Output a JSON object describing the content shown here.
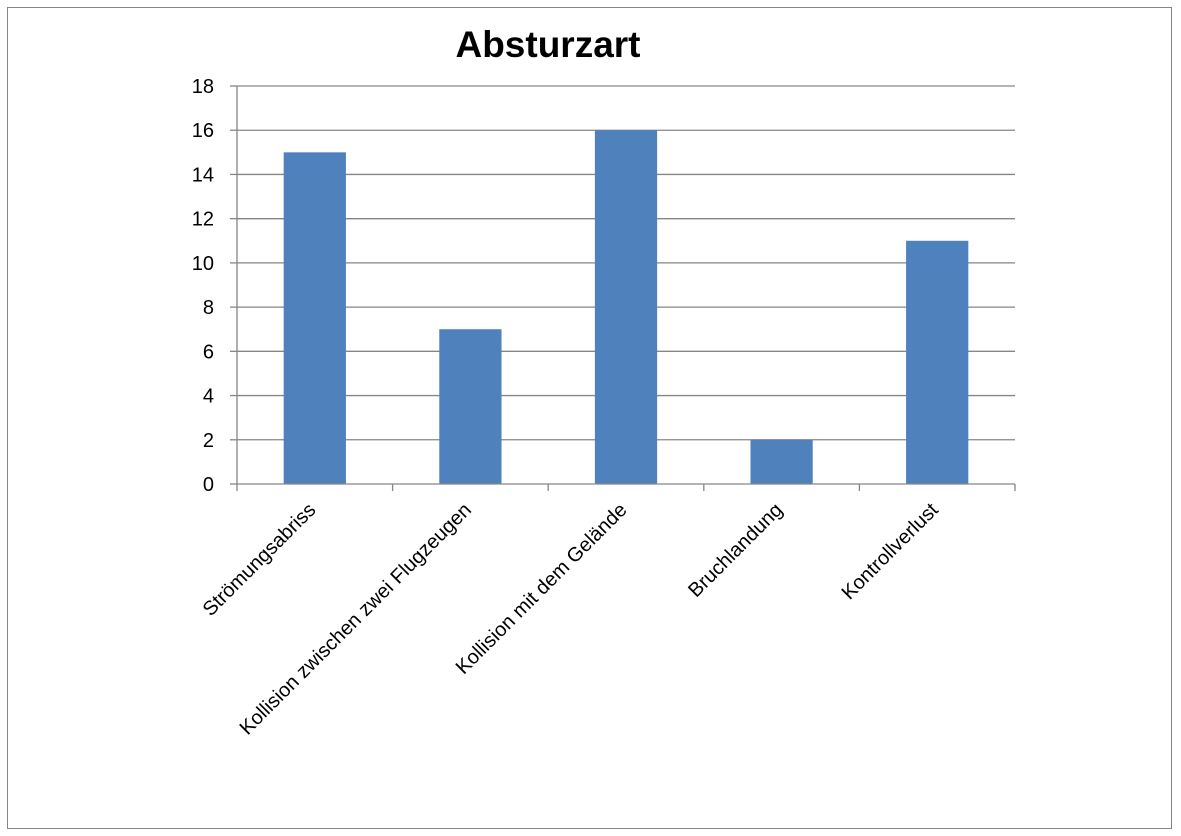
{
  "chart_data": {
    "type": "bar",
    "title": "Absturzart",
    "xlabel": "",
    "ylabel": "",
    "categories": [
      "Strömungsabriss",
      "Kollision zwischen zwei Flugzeugen",
      "Kollision mit dem Gelände",
      "Bruchlandung",
      "Kontrollverlust"
    ],
    "values": [
      15,
      7,
      16,
      2,
      11
    ],
    "ylim": [
      0,
      18
    ],
    "yticks": [
      0,
      2,
      4,
      6,
      8,
      10,
      12,
      14,
      16,
      18
    ],
    "grid": true,
    "legend": "none",
    "bar_color": "#4F81BD",
    "gridline_color": "#868686"
  }
}
